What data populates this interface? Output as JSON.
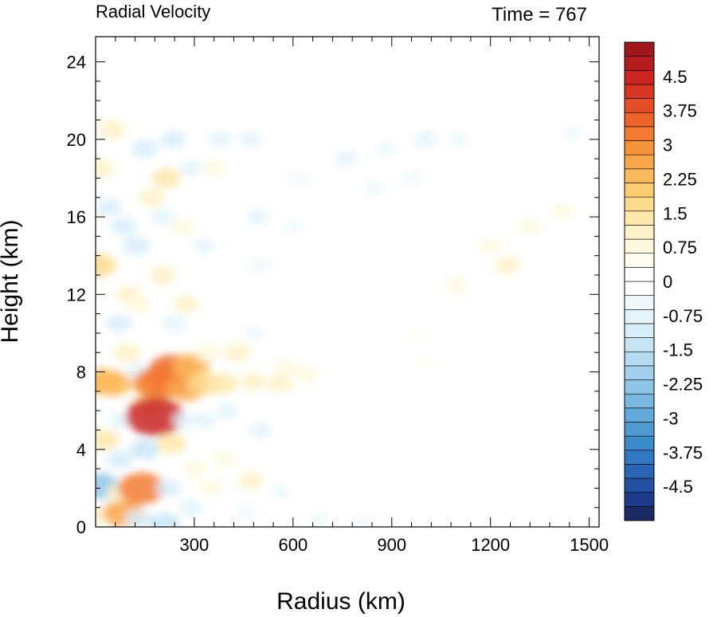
{
  "chart_data": {
    "type": "heatmap",
    "title": "Radial Velocity",
    "subtitle": "Time = 767",
    "xlabel": "Radius (km)",
    "ylabel": "Height (km)",
    "xlim": [
      0,
      1530
    ],
    "ylim": [
      0,
      25.3
    ],
    "x_ticks": [
      300,
      600,
      900,
      1200,
      1500
    ],
    "y_ticks": [
      0,
      4,
      8,
      12,
      16,
      20,
      24
    ],
    "colorbar": {
      "levels": [
        -5.25,
        -5.0,
        -4.75,
        -4.5,
        -4.25,
        -4.0,
        -3.75,
        -3.5,
        -3.25,
        -3.0,
        -2.75,
        -2.5,
        -2.25,
        -2.0,
        -1.75,
        -1.5,
        -1.25,
        -1.0,
        -0.75,
        -0.5,
        -0.25,
        0,
        0.25,
        0.5,
        0.75,
        1.0,
        1.25,
        1.5,
        1.75,
        2.0,
        2.25,
        2.5,
        2.75,
        3.0,
        3.25,
        3.5,
        3.75,
        4.0,
        4.25,
        4.5,
        4.75,
        5.0,
        5.25
      ],
      "labels": [
        "4.5",
        "3.75",
        "3",
        "2.25",
        "1.5",
        "0.75",
        "0",
        "-0.75",
        "-1.5",
        "-2.25",
        "-3",
        "-3.75",
        "-4.5"
      ],
      "label_values": [
        4.5,
        3.75,
        3.0,
        2.25,
        1.5,
        0.75,
        0,
        -0.75,
        -1.5,
        -2.25,
        -3.0,
        -3.75,
        -4.5
      ],
      "colors": [
        "#1b2a63",
        "#1e3a8a",
        "#2350a0",
        "#2a66b4",
        "#3179c0",
        "#3d8bcb",
        "#4f9ad3",
        "#64a9db",
        "#78b7e2",
        "#8dc4e8",
        "#a2d0ee",
        "#b5dbf2",
        "#c8e5f6",
        "#d7edf9",
        "#e4f3fb",
        "#eff8fd",
        "#ffffff",
        "#ffffff",
        "#fffdf2",
        "#fff8df",
        "#fff1c8",
        "#fee8ac",
        "#fddb8e",
        "#fccb72",
        "#fbb95b",
        "#f9a64a",
        "#f6913c",
        "#f27b33",
        "#ec642c",
        "#e34d28",
        "#d83625",
        "#c92523",
        "#b51c20",
        "#9e171c"
      ]
    },
    "fields": [
      {
        "x": 10,
        "y": 0.6,
        "v": 1.0
      },
      {
        "x": 15,
        "y": 2.1,
        "v": -2.3
      },
      {
        "x": 25,
        "y": 4.5,
        "v": 1.5
      },
      {
        "x": 20,
        "y": 7.5,
        "v": 2.4
      },
      {
        "x": 55,
        "y": 7.4,
        "v": 2.2
      },
      {
        "x": 12,
        "y": 13.5,
        "v": 1.8
      },
      {
        "x": 15,
        "y": 18.5,
        "v": 1.2
      },
      {
        "x": 40,
        "y": 16.5,
        "v": -1.0
      },
      {
        "x": 50,
        "y": 20.5,
        "v": 1.2
      },
      {
        "x": 85,
        "y": 0.7,
        "v": 2.6
      },
      {
        "x": 75,
        "y": 3.5,
        "v": -1.2
      },
      {
        "x": 70,
        "y": 1.8,
        "v": 1.0
      },
      {
        "x": 80,
        "y": 5.5,
        "v": -0.9
      },
      {
        "x": 95,
        "y": 9.0,
        "v": 1.2
      },
      {
        "x": 100,
        "y": 12.0,
        "v": 1.0
      },
      {
        "x": 85,
        "y": 15.5,
        "v": -1.1
      },
      {
        "x": 70,
        "y": 10.5,
        "v": -1.0
      },
      {
        "x": 140,
        "y": 2.0,
        "v": 3.2
      },
      {
        "x": 130,
        "y": 0.4,
        "v": -1.2
      },
      {
        "x": 150,
        "y": 4.0,
        "v": -1.3
      },
      {
        "x": 160,
        "y": 6.3,
        "v": 1.6
      },
      {
        "x": 125,
        "y": 8.0,
        "v": -0.8
      },
      {
        "x": 130,
        "y": 11.5,
        "v": 0.9
      },
      {
        "x": 125,
        "y": 14.5,
        "v": -1.2
      },
      {
        "x": 170,
        "y": 17.0,
        "v": 1.1
      },
      {
        "x": 150,
        "y": 19.5,
        "v": -1.1
      },
      {
        "x": 180,
        "y": 5.7,
        "v": 4.4
      },
      {
        "x": 180,
        "y": 7.4,
        "v": 3.0
      },
      {
        "x": 235,
        "y": 8.0,
        "v": 3.6
      },
      {
        "x": 205,
        "y": 7.5,
        "v": 3.2
      },
      {
        "x": 230,
        "y": 4.3,
        "v": 1.4
      },
      {
        "x": 220,
        "y": 2.0,
        "v": -1.0
      },
      {
        "x": 210,
        "y": 0.2,
        "v": -1.5
      },
      {
        "x": 240,
        "y": 10.5,
        "v": -0.9
      },
      {
        "x": 205,
        "y": 13.0,
        "v": 1.2
      },
      {
        "x": 205,
        "y": 16.0,
        "v": -0.9
      },
      {
        "x": 215,
        "y": 18.0,
        "v": 1.4
      },
      {
        "x": 235,
        "y": 20.0,
        "v": -1.0
      },
      {
        "x": 275,
        "y": 7.2,
        "v": 2.5
      },
      {
        "x": 290,
        "y": 8.3,
        "v": 2.2
      },
      {
        "x": 270,
        "y": 5.5,
        "v": -0.8
      },
      {
        "x": 300,
        "y": 3.0,
        "v": 0.9
      },
      {
        "x": 290,
        "y": 1.0,
        "v": -0.9
      },
      {
        "x": 275,
        "y": 11.5,
        "v": 1.0
      },
      {
        "x": 265,
        "y": 15.5,
        "v": 0.9
      },
      {
        "x": 290,
        "y": 18.5,
        "v": -0.8
      },
      {
        "x": 330,
        "y": 7.4,
        "v": 1.8
      },
      {
        "x": 340,
        "y": 9.0,
        "v": 0.9
      },
      {
        "x": 330,
        "y": 5.5,
        "v": -0.9
      },
      {
        "x": 350,
        "y": 2.0,
        "v": 0.8
      },
      {
        "x": 330,
        "y": 14.5,
        "v": -0.7
      },
      {
        "x": 360,
        "y": 18.5,
        "v": 0.7
      },
      {
        "x": 380,
        "y": 20.0,
        "v": -0.8
      },
      {
        "x": 385,
        "y": 7.4,
        "v": 1.5
      },
      {
        "x": 390,
        "y": 3.5,
        "v": 0.8
      },
      {
        "x": 400,
        "y": 6.0,
        "v": -0.7
      },
      {
        "x": 430,
        "y": 9.0,
        "v": 1.2
      },
      {
        "x": 480,
        "y": 7.5,
        "v": 1.1
      },
      {
        "x": 500,
        "y": 5.0,
        "v": -0.7
      },
      {
        "x": 470,
        "y": 2.4,
        "v": 1.0
      },
      {
        "x": 480,
        "y": 10.0,
        "v": -0.6
      },
      {
        "x": 490,
        "y": 16.0,
        "v": -0.7
      },
      {
        "x": 500,
        "y": 13.5,
        "v": -0.6
      },
      {
        "x": 470,
        "y": 20.0,
        "v": -0.8
      },
      {
        "x": 455,
        "y": 0.8,
        "v": -0.6
      },
      {
        "x": 560,
        "y": 7.4,
        "v": 1.0
      },
      {
        "x": 580,
        "y": 8.2,
        "v": 0.9
      },
      {
        "x": 640,
        "y": 7.9,
        "v": 0.8
      },
      {
        "x": 560,
        "y": 1.8,
        "v": -0.5
      },
      {
        "x": 620,
        "y": 18.0,
        "v": -0.6
      },
      {
        "x": 600,
        "y": 15.5,
        "v": -0.5
      },
      {
        "x": 760,
        "y": 19.0,
        "v": -0.7
      },
      {
        "x": 880,
        "y": 19.5,
        "v": -0.6
      },
      {
        "x": 1000,
        "y": 20.0,
        "v": -0.7
      },
      {
        "x": 1100,
        "y": 20.0,
        "v": -0.6
      },
      {
        "x": 850,
        "y": 17.5,
        "v": -0.6
      },
      {
        "x": 960,
        "y": 18.0,
        "v": -0.6
      },
      {
        "x": 1250,
        "y": 13.5,
        "v": 1.0
      },
      {
        "x": 1200,
        "y": 14.5,
        "v": 0.8
      },
      {
        "x": 1320,
        "y": 15.5,
        "v": 0.7
      },
      {
        "x": 1100,
        "y": 12.5,
        "v": 0.7
      },
      {
        "x": 980,
        "y": 10.0,
        "v": 0.6
      },
      {
        "x": 1000,
        "y": 8.5,
        "v": 0.5
      },
      {
        "x": 1420,
        "y": 16.3,
        "v": 0.7
      },
      {
        "x": 1450,
        "y": 20.3,
        "v": -0.5
      },
      {
        "x": 680,
        "y": 0.4,
        "v": -0.5
      },
      {
        "x": 820,
        "y": 0.3,
        "v": -0.4
      }
    ]
  }
}
